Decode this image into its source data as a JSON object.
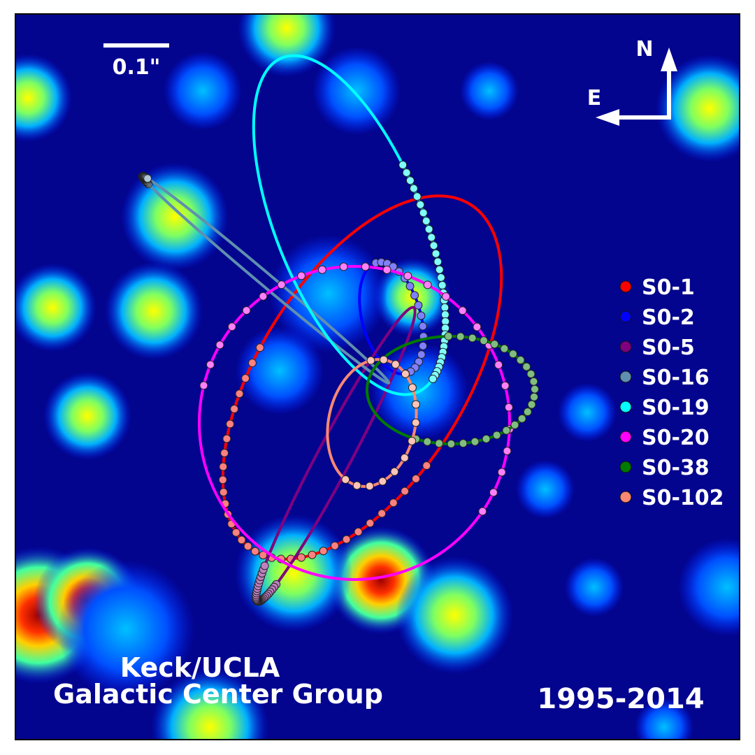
{
  "scale_bar": {
    "label": "0.1\""
  },
  "compass": {
    "north": "N",
    "east": "E"
  },
  "credit": {
    "line1": "Keck/UCLA",
    "line2": "Galactic Center Group"
  },
  "date_range": "1995-2014",
  "background_color": "#03058f",
  "legend": [
    {
      "name": "S0-1",
      "color": "#ff0000"
    },
    {
      "name": "S0-2",
      "color": "#0000ff"
    },
    {
      "name": "S0-5",
      "color": "#800080"
    },
    {
      "name": "S0-16",
      "color": "#5f8fb0"
    },
    {
      "name": "S0-19",
      "color": "#00ffff"
    },
    {
      "name": "S0-20",
      "color": "#ff00ff"
    },
    {
      "name": "S0-38",
      "color": "#007a00"
    },
    {
      "name": "S0-102",
      "color": "#fa8872"
    }
  ]
}
